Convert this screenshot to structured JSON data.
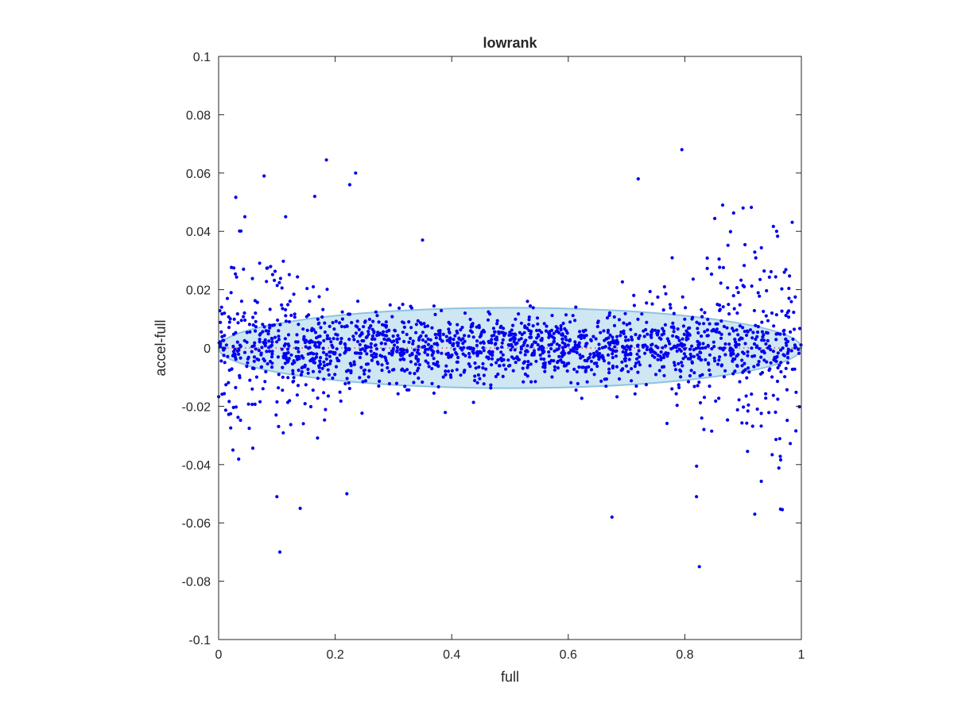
{
  "chart_data": {
    "type": "scatter",
    "title": "lowrank",
    "xlabel": "full",
    "ylabel": "accel-full",
    "xlim": [
      0,
      1
    ],
    "ylim": [
      -0.1,
      0.1
    ],
    "xticks": [
      "0",
      "0.2",
      "0.4",
      "0.6",
      "0.8",
      "1"
    ],
    "xtick_values": [
      0,
      0.2,
      0.4,
      0.6,
      0.8,
      1
    ],
    "yticks": [
      "0.1",
      "0.08",
      "0.06",
      "0.04",
      "0.02",
      "0",
      "-0.02",
      "-0.04",
      "-0.06",
      "-0.08",
      "-0.1"
    ],
    "ytick_values": [
      0.1,
      0.08,
      0.06,
      0.04,
      0.02,
      0,
      -0.02,
      -0.04,
      -0.06,
      -0.08,
      -0.1
    ],
    "grid": false,
    "box": true,
    "reference_line": {
      "y": 0,
      "style": "dotted",
      "color": "#ff3333"
    },
    "ellipse": {
      "center": [
        0.5,
        0
      ],
      "semi_axis_x": 0.5,
      "semi_axis_y": 0.0138,
      "fill": "#cfe6f3",
      "stroke": "#8cc3e3"
    },
    "series": [
      {
        "marker_color": "#0000ee",
        "points_sampled": 1800,
        "notable_points": [
          [
            0.185,
            0.0645
          ],
          [
            0.795,
            0.068
          ],
          [
            0.235,
            0.06
          ],
          [
            0.078,
            0.059
          ],
          [
            0.225,
            0.056
          ],
          [
            0.72,
            0.058
          ],
          [
            0.105,
            -0.07
          ],
          [
            0.825,
            -0.075
          ],
          [
            0.675,
            -0.058
          ],
          [
            0.14,
            -0.055
          ],
          [
            0.92,
            -0.057
          ],
          [
            0.9,
            0.048
          ],
          [
            0.865,
            0.049
          ],
          [
            0.165,
            0.052
          ],
          [
            0.045,
            0.045
          ],
          [
            0.115,
            0.045
          ],
          [
            0.35,
            0.037
          ],
          [
            0.82,
            -0.051
          ],
          [
            0.1,
            -0.051
          ],
          [
            0.22,
            -0.05
          ]
        ],
        "distribution": "dense cloud within ±0.013 around y=0 across x∈[0,1]; spread widens to about ±0.05 near both ends (x<0.3 and x>0.65) and narrows in the middle"
      }
    ]
  }
}
